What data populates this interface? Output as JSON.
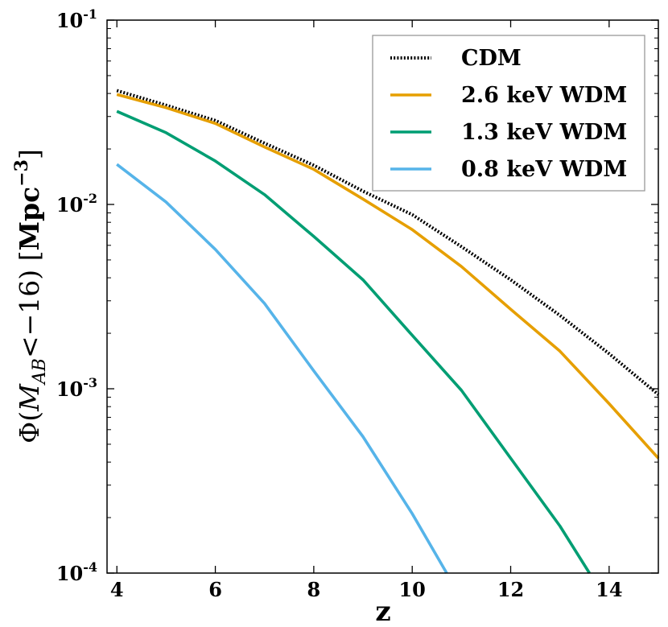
{
  "chart_data": {
    "type": "line",
    "title": "",
    "xlabel": "z",
    "ylabel": {
      "prefix": "Φ(",
      "var": "M",
      "sub": "AB",
      "mid": "<−16) [",
      "unit": "Mpc",
      "sup": "−3",
      "suffix": "]"
    },
    "xlim": [
      3.8,
      15
    ],
    "ylim": [
      0.0001,
      0.1
    ],
    "yscale": "log",
    "grid": false,
    "legend_position": "top-right",
    "x_ticks": [
      4,
      6,
      8,
      10,
      12,
      14
    ],
    "x_tick_labels": [
      "4",
      "6",
      "8",
      "10",
      "12",
      "14"
    ],
    "y_ticks": [
      {
        "value": 0.1,
        "base": "10",
        "exp": "-1"
      },
      {
        "value": 0.01,
        "base": "10",
        "exp": "-2"
      },
      {
        "value": 0.001,
        "base": "10",
        "exp": "-3"
      },
      {
        "value": 0.0001,
        "base": "10",
        "exp": "-4"
      }
    ],
    "series": [
      {
        "name": "CDM",
        "color": "#000000",
        "style": "dotted",
        "x": [
          4,
          5,
          6,
          7,
          8,
          9,
          10,
          11,
          12,
          13,
          14,
          15
        ],
        "y": [
          0.0415,
          0.0345,
          0.0285,
          0.0215,
          0.0163,
          0.0118,
          0.0088,
          0.0059,
          0.0039,
          0.0025,
          0.00155,
          0.00093
        ]
      },
      {
        "name": "2.6 keV WDM",
        "color": "#E69F00",
        "style": "solid",
        "x": [
          4,
          5,
          6,
          7,
          8,
          9,
          10,
          11,
          12,
          13,
          14,
          15
        ],
        "y": [
          0.0395,
          0.0335,
          0.0275,
          0.0205,
          0.0155,
          0.0107,
          0.0073,
          0.0046,
          0.0027,
          0.0016,
          0.00083,
          0.00042
        ]
      },
      {
        "name": "1.3 keV WDM",
        "color": "#009E73",
        "style": "solid",
        "x": [
          4,
          5,
          6,
          7,
          8,
          9,
          10,
          11,
          12,
          13,
          13.6
        ],
        "y": [
          0.032,
          0.0245,
          0.0172,
          0.0113,
          0.0067,
          0.0039,
          0.00195,
          0.00098,
          0.00042,
          0.00018,
          0.0001
        ]
      },
      {
        "name": "0.8 keV WDM",
        "color": "#56B4E9",
        "style": "solid",
        "x": [
          4,
          5,
          6,
          7,
          8,
          9,
          10,
          10.7
        ],
        "y": [
          0.0165,
          0.0103,
          0.0057,
          0.0029,
          0.00125,
          0.00055,
          0.00021,
          0.0001
        ]
      }
    ]
  }
}
